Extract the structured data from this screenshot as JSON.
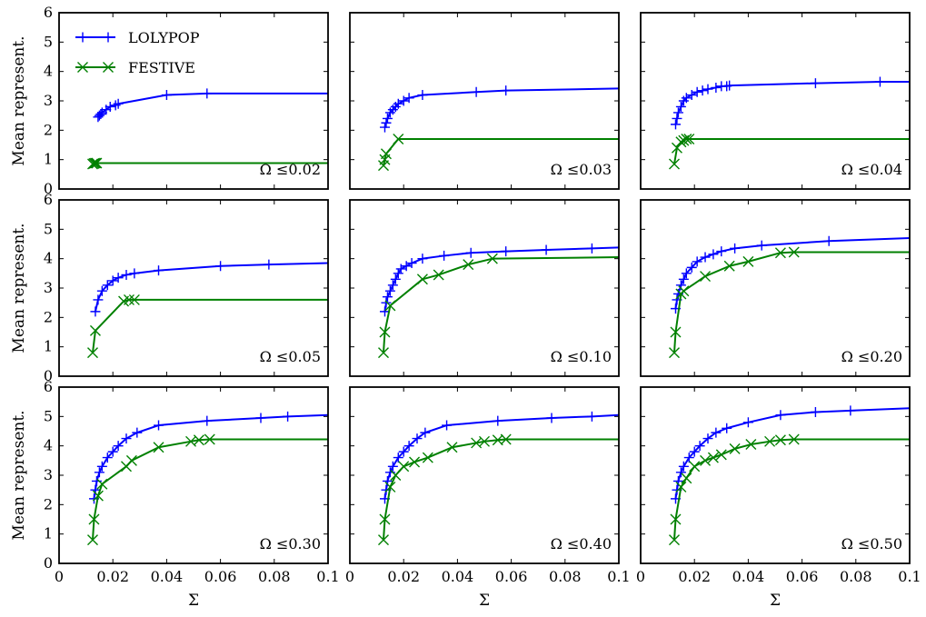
{
  "legend": {
    "series": [
      {
        "name": "LOLYPOP",
        "color": "#0000ff",
        "marker": "plus"
      },
      {
        "name": "FESTIVE",
        "color": "#008000",
        "marker": "x"
      }
    ],
    "placement": "top-left"
  },
  "axes_common": {
    "xlabel": "Σ",
    "ylabel": "Mean represent.",
    "xlim": [
      0,
      0.1
    ],
    "ylim": [
      0,
      6
    ],
    "xticks": [
      "0",
      "0.02",
      "0.04",
      "0.06",
      "0.08",
      "0.1"
    ],
    "yticks": [
      "0",
      "1",
      "2",
      "3",
      "4",
      "5",
      "6"
    ]
  },
  "chart_data": [
    {
      "type": "line",
      "title": "Ω ≤0.02",
      "series": [
        {
          "name": "LOLYPOP",
          "x": [
            0.0145,
            0.015,
            0.0155,
            0.016,
            0.0175,
            0.019,
            0.021,
            0.022,
            0.04,
            0.055,
            0.1
          ],
          "y": [
            2.45,
            2.5,
            2.55,
            2.6,
            2.7,
            2.8,
            2.85,
            2.9,
            3.2,
            3.25,
            3.25
          ],
          "show_line": true
        },
        {
          "name": "FESTIVE",
          "x": [
            0.0125,
            0.013,
            0.0135,
            0.014,
            0.1
          ],
          "y": [
            0.85,
            0.87,
            0.88,
            0.88,
            0.88
          ],
          "show_line": true
        }
      ]
    },
    {
      "type": "line",
      "title": "Ω ≤0.03",
      "series": [
        {
          "name": "LOLYPOP",
          "x": [
            0.013,
            0.0135,
            0.014,
            0.015,
            0.016,
            0.017,
            0.018,
            0.02,
            0.022,
            0.027,
            0.047,
            0.058,
            0.1
          ],
          "y": [
            2.1,
            2.25,
            2.4,
            2.6,
            2.7,
            2.8,
            2.9,
            3.0,
            3.1,
            3.2,
            3.3,
            3.35,
            3.42
          ],
          "show_line": true
        },
        {
          "name": "FESTIVE",
          "x": [
            0.0125,
            0.013,
            0.0135,
            0.018,
            0.1
          ],
          "y": [
            0.8,
            1.0,
            1.2,
            1.7,
            1.7
          ],
          "show_line": true
        }
      ]
    },
    {
      "type": "line",
      "title": "Ω ≤0.04",
      "series": [
        {
          "name": "LOLYPOP",
          "x": [
            0.013,
            0.0135,
            0.014,
            0.015,
            0.016,
            0.017,
            0.019,
            0.021,
            0.023,
            0.025,
            0.028,
            0.03,
            0.032,
            0.033,
            0.065,
            0.089,
            0.1
          ],
          "y": [
            2.2,
            2.4,
            2.6,
            2.8,
            3.0,
            3.1,
            3.2,
            3.3,
            3.35,
            3.4,
            3.45,
            3.5,
            3.5,
            3.52,
            3.6,
            3.65,
            3.65
          ],
          "show_line": true
        },
        {
          "name": "FESTIVE",
          "x": [
            0.0125,
            0.0135,
            0.015,
            0.016,
            0.017,
            0.018,
            0.1
          ],
          "y": [
            0.85,
            1.4,
            1.6,
            1.65,
            1.7,
            1.7,
            1.7
          ],
          "show_line": true
        }
      ]
    },
    {
      "type": "line",
      "title": "Ω ≤0.05",
      "series": [
        {
          "name": "LOLYPOP",
          "x": [
            0.0135,
            0.0145,
            0.016,
            0.018,
            0.02,
            0.022,
            0.025,
            0.028,
            0.037,
            0.06,
            0.078,
            0.1
          ],
          "y": [
            2.2,
            2.6,
            2.9,
            3.1,
            3.25,
            3.35,
            3.45,
            3.5,
            3.6,
            3.75,
            3.8,
            3.85
          ],
          "show_line": true
        },
        {
          "name": "FESTIVE",
          "x": [
            0.0125,
            0.0135,
            0.024,
            0.026,
            0.028,
            0.1
          ],
          "y": [
            0.8,
            1.55,
            2.55,
            2.6,
            2.6,
            2.6
          ],
          "show_line": true
        }
      ]
    },
    {
      "type": "line",
      "title": "Ω ≤0.10",
      "series": [
        {
          "name": "LOLYPOP",
          "x": [
            0.013,
            0.0135,
            0.014,
            0.015,
            0.016,
            0.017,
            0.018,
            0.019,
            0.021,
            0.023,
            0.027,
            0.035,
            0.045,
            0.058,
            0.073,
            0.09,
            0.1
          ],
          "y": [
            2.2,
            2.5,
            2.7,
            2.9,
            3.1,
            3.3,
            3.5,
            3.65,
            3.75,
            3.85,
            4.0,
            4.1,
            4.2,
            4.25,
            4.3,
            4.35,
            4.38
          ],
          "show_line": true
        },
        {
          "name": "FESTIVE",
          "x": [
            0.0125,
            0.013,
            0.015,
            0.027,
            0.033,
            0.044,
            0.053,
            0.1
          ],
          "y": [
            0.8,
            1.5,
            2.4,
            3.3,
            3.45,
            3.8,
            4.0,
            4.05
          ],
          "show_line": true
        }
      ]
    },
    {
      "type": "line",
      "title": "Ω ≤0.20",
      "series": [
        {
          "name": "LOLYPOP",
          "x": [
            0.013,
            0.0135,
            0.014,
            0.015,
            0.016,
            0.017,
            0.019,
            0.021,
            0.024,
            0.027,
            0.03,
            0.035,
            0.045,
            0.07,
            0.1
          ],
          "y": [
            2.3,
            2.6,
            2.8,
            3.1,
            3.3,
            3.5,
            3.7,
            3.9,
            4.05,
            4.15,
            4.25,
            4.35,
            4.45,
            4.6,
            4.7
          ],
          "show_line": true
        },
        {
          "name": "FESTIVE",
          "x": [
            0.0125,
            0.013,
            0.015,
            0.016,
            0.024,
            0.033,
            0.04,
            0.052,
            0.057,
            0.1
          ],
          "y": [
            0.8,
            1.5,
            2.8,
            2.9,
            3.4,
            3.75,
            3.9,
            4.2,
            4.22,
            4.22
          ],
          "show_line": true
        }
      ]
    },
    {
      "type": "line",
      "title": "Ω ≤0.30",
      "series": [
        {
          "name": "LOLYPOP",
          "x": [
            0.013,
            0.0135,
            0.014,
            0.015,
            0.016,
            0.018,
            0.02,
            0.022,
            0.025,
            0.029,
            0.037,
            0.055,
            0.075,
            0.085,
            0.1
          ],
          "y": [
            2.2,
            2.5,
            2.8,
            3.1,
            3.3,
            3.6,
            3.8,
            4.0,
            4.25,
            4.45,
            4.7,
            4.85,
            4.95,
            5.0,
            5.05
          ],
          "show_line": true
        },
        {
          "name": "FESTIVE",
          "x": [
            0.0125,
            0.013,
            0.0145,
            0.016,
            0.025,
            0.027,
            0.037,
            0.049,
            0.052,
            0.056,
            0.1
          ],
          "y": [
            0.8,
            1.5,
            2.3,
            2.7,
            3.3,
            3.5,
            3.95,
            4.15,
            4.2,
            4.22,
            4.22
          ],
          "show_line": true
        }
      ]
    },
    {
      "type": "line",
      "title": "Ω ≤0.40",
      "series": [
        {
          "name": "LOLYPOP",
          "x": [
            0.013,
            0.0135,
            0.014,
            0.015,
            0.016,
            0.018,
            0.02,
            0.022,
            0.025,
            0.028,
            0.036,
            0.055,
            0.075,
            0.09,
            0.1
          ],
          "y": [
            2.2,
            2.5,
            2.8,
            3.1,
            3.3,
            3.6,
            3.8,
            4.0,
            4.25,
            4.45,
            4.7,
            4.85,
            4.95,
            5.0,
            5.05
          ],
          "show_line": true
        },
        {
          "name": "FESTIVE",
          "x": [
            0.0125,
            0.013,
            0.015,
            0.017,
            0.02,
            0.024,
            0.029,
            0.038,
            0.047,
            0.05,
            0.055,
            0.058,
            0.1
          ],
          "y": [
            0.8,
            1.5,
            2.6,
            3.0,
            3.3,
            3.45,
            3.6,
            3.95,
            4.1,
            4.15,
            4.2,
            4.22,
            4.22
          ],
          "show_line": true
        }
      ]
    },
    {
      "type": "line",
      "title": "Ω ≤0.50",
      "series": [
        {
          "name": "LOLYPOP",
          "x": [
            0.013,
            0.0135,
            0.014,
            0.015,
            0.016,
            0.018,
            0.02,
            0.022,
            0.025,
            0.028,
            0.032,
            0.04,
            0.052,
            0.065,
            0.078,
            0.1
          ],
          "y": [
            2.2,
            2.5,
            2.8,
            3.1,
            3.3,
            3.6,
            3.8,
            4.0,
            4.25,
            4.45,
            4.6,
            4.8,
            5.05,
            5.15,
            5.2,
            5.28
          ],
          "show_line": true
        },
        {
          "name": "FESTIVE",
          "x": [
            0.0125,
            0.013,
            0.015,
            0.017,
            0.02,
            0.024,
            0.027,
            0.03,
            0.035,
            0.041,
            0.048,
            0.052,
            0.057,
            0.1
          ],
          "y": [
            0.8,
            1.5,
            2.6,
            2.9,
            3.3,
            3.5,
            3.6,
            3.7,
            3.9,
            4.05,
            4.15,
            4.2,
            4.22,
            4.22
          ],
          "show_line": true
        }
      ]
    }
  ]
}
